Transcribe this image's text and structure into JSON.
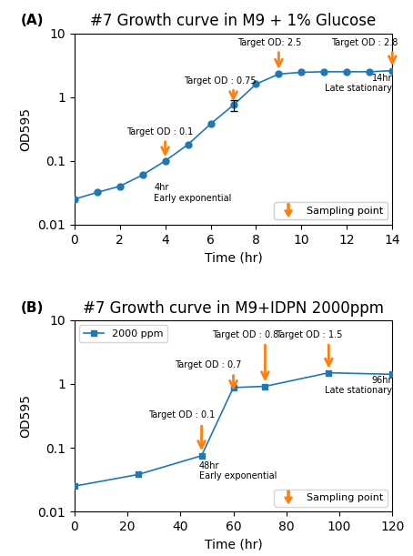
{
  "chart_data": [
    {
      "type": "line",
      "title": "#7 Growth curve in M9 + 1% Glucose",
      "x_label": "Time (hr)",
      "y_label": "OD595",
      "panel_label": "(A)",
      "log": "y",
      "x": [
        0,
        1,
        2,
        3,
        4,
        5,
        6,
        7,
        8,
        9,
        10,
        11,
        12,
        13,
        14
      ],
      "series": [
        {
          "values": [
            0.025,
            0.032,
            0.04,
            0.06,
            0.1,
            0.18,
            0.38,
            0.75,
            1.6,
            2.3,
            2.45,
            2.5,
            2.5,
            2.5,
            2.6
          ],
          "marker": "circle",
          "errors": [
            null,
            null,
            null,
            null,
            null,
            null,
            null,
            0.15,
            null,
            null,
            null,
            null,
            null,
            null,
            null
          ]
        }
      ],
      "xlim": [
        0,
        14
      ],
      "ylim": [
        0.01,
        10
      ],
      "xticks": [
        0,
        2,
        4,
        6,
        8,
        10,
        12,
        14
      ],
      "yticks": [
        0.01,
        0.1,
        1,
        10
      ],
      "sampling": {
        "name": "Sampling point",
        "legend": "lower right",
        "points": [
          {
            "x": 4,
            "y_start": 0.22,
            "y_end": 0.105,
            "label": "Target OD : 0.1",
            "text_x": 2.3,
            "text_y": 0.24
          },
          {
            "x": 7,
            "y_start": 1.4,
            "y_end": 0.78,
            "label": "Target OD : 0.75",
            "text_x": 4.8,
            "text_y": 1.5
          },
          {
            "x": 9,
            "y_start": 5.5,
            "y_end": 2.5,
            "label": "Target OD: 2.5",
            "text_x": 7.2,
            "text_y": 6.0
          },
          {
            "x": 14,
            "y_start": 5.5,
            "y_end": 2.8,
            "label": "Target OD : 2.8",
            "text_x": 11.3,
            "text_y": 6.0
          }
        ]
      },
      "annotations": [
        {
          "text": "4hr\nEarly exponential",
          "x": 3.5,
          "y": 0.045
        },
        {
          "text": "14hr\nLate stationary",
          "x": 14.0,
          "y": 2.35
        }
      ]
    },
    {
      "type": "line",
      "title": "#7 Growth curve in M9+IDPN 2000ppm",
      "x_label": "Time (hr)",
      "y_label": "OD595",
      "panel_label": "(B)",
      "log": "y",
      "legend": "upper left",
      "x": [
        0,
        24,
        48,
        60,
        72,
        96,
        120
      ],
      "series": [
        {
          "name": "2000 ppm",
          "values": [
            0.025,
            0.038,
            0.075,
            0.88,
            0.92,
            1.5,
            1.42
          ],
          "marker": "square"
        }
      ],
      "xlim": [
        0,
        120
      ],
      "ylim": [
        0.01,
        10
      ],
      "xticks": [
        0,
        20,
        40,
        60,
        80,
        100,
        120
      ],
      "yticks": [
        0.01,
        0.1,
        1,
        10
      ],
      "sampling": {
        "name": "Sampling point",
        "legend": "lower right",
        "points": [
          {
            "x": 48,
            "y_start": 0.24,
            "y_end": 0.082,
            "label": "Target OD : 0.1",
            "text_x": 28,
            "text_y": 0.28
          },
          {
            "x": 60,
            "y_start": 1.5,
            "y_end": 0.72,
            "label": "Target OD : 0.7",
            "text_x": 38,
            "text_y": 1.7
          },
          {
            "x": 72,
            "y_start": 4.5,
            "y_end": 0.99,
            "label": "Target OD : 0.8",
            "text_x": 52,
            "text_y": 5.0
          },
          {
            "x": 96,
            "y_start": 4.5,
            "y_end": 1.6,
            "label": "Target OD : 1.5",
            "text_x": 76,
            "text_y": 5.0
          }
        ]
      },
      "annotations": [
        {
          "text": "48hr\nEarly exponential",
          "x": 47,
          "y": 0.062
        },
        {
          "text": "96hr\nLate stationary",
          "x": 120,
          "y": 1.35
        }
      ]
    }
  ]
}
